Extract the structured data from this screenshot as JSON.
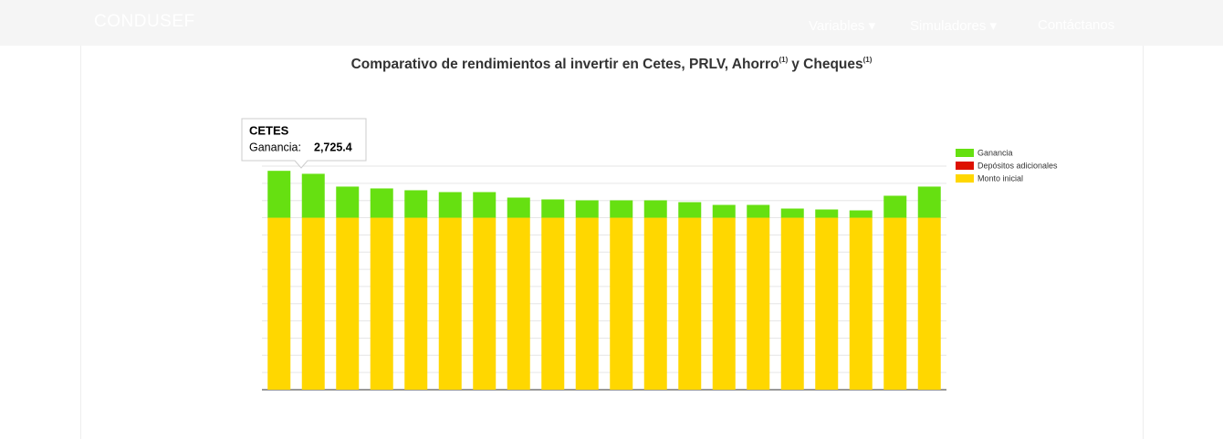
{
  "nav": {
    "brand": "CONDUSEF",
    "items": [
      "Variables",
      "Simuladores",
      "Contáctanos"
    ]
  },
  "chart_data": {
    "type": "stacked-bar",
    "title": [
      "Comparativo de rendimientos al invertir en Cetes, PRLV, Ahorro",
      "(1)",
      "y Cheques",
      "(1)"
    ],
    "categories": [
      "CETES",
      null,
      null,
      null,
      null,
      null,
      null,
      null,
      null,
      null,
      null,
      null,
      null,
      null,
      null,
      null,
      null,
      null,
      null,
      null
    ],
    "series": [
      {
        "name": "Ganancia",
        "color": "#66e011",
        "values": [
          2725.4,
          2553,
          1809,
          1702,
          1596,
          1489,
          1489,
          1170,
          1064,
          1011,
          1011,
          1011,
          904,
          745,
          745,
          532,
          479,
          426,
          1277,
          1809
        ]
      },
      {
        "name": "Depósitos adicionales",
        "color": "#dd1100",
        "values": [
          0,
          0,
          0,
          0,
          0,
          0,
          0,
          0,
          0,
          0,
          0,
          0,
          0,
          0,
          0,
          0,
          0,
          0,
          0,
          0
        ]
      },
      {
        "name": "Monto inicial",
        "color": "#ffd700",
        "values": [
          10000,
          10000,
          10000,
          10000,
          10000,
          10000,
          10000,
          10000,
          10000,
          10000,
          10000,
          10000,
          10000,
          10000,
          10000,
          10000,
          10000,
          10000,
          10000,
          10000
        ]
      }
    ],
    "ylim": [
      0,
      13000
    ],
    "yticks": [
      0,
      1000,
      2000,
      3000,
      4000,
      5000,
      6000,
      7000,
      8000,
      9000,
      10000,
      11000,
      12000,
      13000
    ],
    "grid": true,
    "legend": "top-right",
    "tooltip": {
      "label": "Ganancia:",
      "value": "2,725.4"
    }
  }
}
